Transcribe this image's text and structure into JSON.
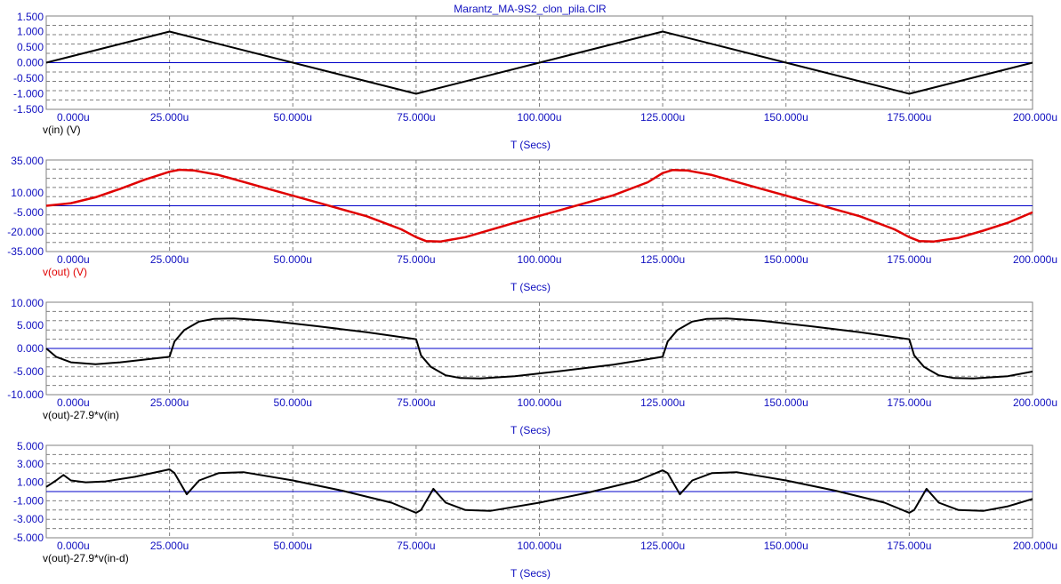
{
  "window": {
    "title": "Marantz_MA-9S2_clon_pila.CIR"
  },
  "colors": {
    "axis": "#1010c0",
    "grid": "#808080",
    "zero": "#0000c8"
  },
  "chart_data": [
    {
      "type": "line",
      "xlim": [
        0,
        200
      ],
      "ylim": [
        -1.5,
        1.5
      ],
      "xticks": [
        "0.000u",
        "25.000u",
        "50.000u",
        "75.000u",
        "100.000u",
        "125.000u",
        "150.000u",
        "175.000u",
        "200.000u"
      ],
      "yticks": [
        "1.500",
        "1.000",
        "0.500",
        "0.000",
        "-0.500",
        "-1.000",
        "-1.500"
      ],
      "ytick_values": [
        1.5,
        1.0,
        0.5,
        0.0,
        -0.5,
        -1.0,
        -1.5
      ],
      "xlabel": "T (Secs)",
      "grid": true,
      "series": [
        {
          "name": "v(in) (V)",
          "color": "#000000",
          "x": [
            0,
            25,
            75,
            125,
            175,
            200
          ],
          "y": [
            0,
            1,
            -1,
            1,
            -1,
            0
          ]
        }
      ]
    },
    {
      "type": "line",
      "xlim": [
        0,
        200
      ],
      "ylim": [
        -35,
        35
      ],
      "xticks": [
        "0.000u",
        "25.000u",
        "50.000u",
        "75.000u",
        "100.000u",
        "125.000u",
        "150.000u",
        "175.000u",
        "200.000u"
      ],
      "yticks": [
        "35.000",
        "10.000",
        "-5.000",
        "-20.000",
        "-35.000"
      ],
      "ytick_values": [
        35,
        10,
        -5,
        -20,
        -35
      ],
      "xlabel": "T (Secs)",
      "grid": true,
      "series": [
        {
          "name": "v(out) (V)",
          "color": "#e00000",
          "x": [
            0,
            5,
            10,
            15,
            20,
            25,
            27,
            30,
            35,
            45,
            55,
            65,
            72,
            75,
            77,
            80,
            85,
            95,
            105,
            115,
            122,
            125,
            127,
            130,
            135,
            145,
            155,
            165,
            172,
            175,
            177,
            180,
            185,
            190,
            195,
            200
          ],
          "y": [
            0,
            2,
            6.5,
            13,
            20,
            26,
            27.5,
            27,
            23.5,
            13,
            2.5,
            -8,
            -18,
            -24,
            -27,
            -27.3,
            -24,
            -13,
            -2.5,
            8,
            18,
            25,
            27.3,
            27,
            23.5,
            13,
            2.5,
            -8,
            -18,
            -24,
            -27,
            -27.3,
            -24.5,
            -19,
            -13,
            -5
          ]
        }
      ]
    },
    {
      "type": "line",
      "xlim": [
        0,
        200
      ],
      "ylim": [
        -10,
        10
      ],
      "xticks": [
        "0.000u",
        "25.000u",
        "50.000u",
        "75.000u",
        "100.000u",
        "125.000u",
        "150.000u",
        "175.000u",
        "200.000u"
      ],
      "yticks": [
        "10.000",
        "5.000",
        "0.000",
        "-5.000",
        "-10.000"
      ],
      "ytick_values": [
        10,
        5,
        0,
        -5,
        -10
      ],
      "xlabel": "T (Secs)",
      "grid": true,
      "series": [
        {
          "name": "v(out)-27.9*v(in)",
          "color": "#000000",
          "x": [
            0,
            2,
            5,
            10,
            15,
            20,
            25,
            26,
            28,
            31,
            34,
            38,
            45,
            55,
            65,
            75,
            76,
            78,
            81,
            84,
            88,
            95,
            105,
            115,
            125,
            126,
            128,
            131,
            134,
            138,
            145,
            155,
            165,
            175,
            176,
            178,
            181,
            184,
            188,
            195,
            200
          ],
          "y": [
            0,
            -1.8,
            -3.0,
            -3.4,
            -3.0,
            -2.4,
            -1.8,
            1.5,
            4.0,
            5.8,
            6.4,
            6.5,
            6.0,
            4.8,
            3.5,
            2.0,
            -1.5,
            -4.0,
            -5.8,
            -6.4,
            -6.5,
            -6.0,
            -4.8,
            -3.5,
            -1.8,
            1.5,
            4.0,
            5.8,
            6.4,
            6.5,
            6.0,
            4.8,
            3.5,
            2.0,
            -1.5,
            -4.0,
            -5.8,
            -6.4,
            -6.5,
            -6.0,
            -5.0
          ]
        }
      ]
    },
    {
      "type": "line",
      "xlim": [
        0,
        200
      ],
      "ylim": [
        -5,
        5
      ],
      "xticks": [
        "0.000u",
        "25.000u",
        "50.000u",
        "75.000u",
        "100.000u",
        "125.000u",
        "150.000u",
        "175.000u",
        "200.000u"
      ],
      "yticks": [
        "5.000",
        "3.000",
        "1.000",
        "-1.000",
        "-3.000",
        "-5.000"
      ],
      "ytick_values": [
        5,
        3,
        1,
        -1,
        -3,
        -5
      ],
      "xlabel": "T (Secs)",
      "grid": true,
      "series": [
        {
          "name": "v(out)-27.9*v(in-d)",
          "color": "#000000",
          "x": [
            0,
            2,
            3.5,
            5,
            8,
            12,
            18,
            25,
            26,
            28.5,
            31,
            35,
            40,
            50,
            60,
            70,
            75,
            76,
            78.5,
            81,
            85,
            90,
            100,
            110,
            120,
            125,
            126,
            128.5,
            131,
            135,
            140,
            150,
            160,
            170,
            175,
            176,
            178.5,
            181,
            185,
            190,
            195,
            200
          ],
          "y": [
            0.5,
            1.2,
            1.8,
            1.2,
            1.0,
            1.1,
            1.6,
            2.4,
            2.0,
            -0.3,
            1.2,
            2.0,
            2.1,
            1.2,
            0.1,
            -1.2,
            -2.3,
            -2.0,
            0.3,
            -1.2,
            -2.0,
            -2.1,
            -1.2,
            -0.1,
            1.2,
            2.3,
            2.0,
            -0.3,
            1.2,
            2.0,
            2.1,
            1.2,
            0.1,
            -1.2,
            -2.3,
            -2.0,
            0.3,
            -1.2,
            -2.0,
            -2.1,
            -1.6,
            -0.8
          ]
        }
      ]
    }
  ]
}
